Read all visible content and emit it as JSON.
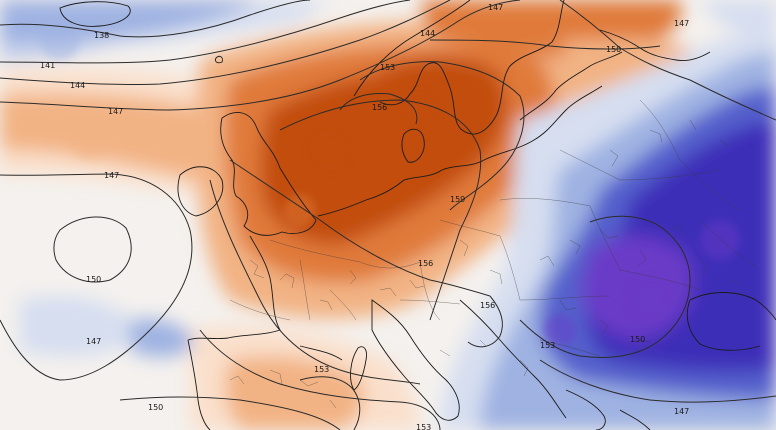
{
  "map": {
    "colors": {
      "warm_strong": "#c24e0f",
      "warm_mid": "#e07a3a",
      "warm_light": "#f2b384",
      "warm_pale": "#fae0cc",
      "neutral": "#f4f1ee",
      "cold_pale": "#d6def0",
      "cold_light": "#9fb2e2",
      "cold_mid": "#5560cc",
      "cold_strong": "#3c2fb8",
      "cold_violet": "#6b3bc7"
    },
    "contour_labels": [
      {
        "id": "c138",
        "text": "138"
      },
      {
        "id": "c141",
        "text": "141"
      },
      {
        "id": "c144a",
        "text": "144"
      },
      {
        "id": "c147a",
        "text": "147"
      },
      {
        "id": "c147b",
        "text": "147"
      },
      {
        "id": "c147c",
        "text": "147"
      },
      {
        "id": "c147d",
        "text": "147"
      },
      {
        "id": "c147e",
        "text": "147"
      },
      {
        "id": "c147f",
        "text": "147"
      },
      {
        "id": "c144b",
        "text": "144"
      },
      {
        "id": "c150a",
        "text": "150"
      },
      {
        "id": "c150b",
        "text": "150"
      },
      {
        "id": "c150c",
        "text": "150"
      },
      {
        "id": "c153a",
        "text": "153"
      },
      {
        "id": "c153b",
        "text": "153"
      },
      {
        "id": "c153c",
        "text": "153"
      },
      {
        "id": "c153d",
        "text": "153"
      },
      {
        "id": "c156a",
        "text": "156"
      },
      {
        "id": "c156b",
        "text": "156"
      },
      {
        "id": "c156c",
        "text": "156"
      },
      {
        "id": "c159",
        "text": "159"
      },
      {
        "id": "c150d",
        "text": "150"
      }
    ]
  }
}
